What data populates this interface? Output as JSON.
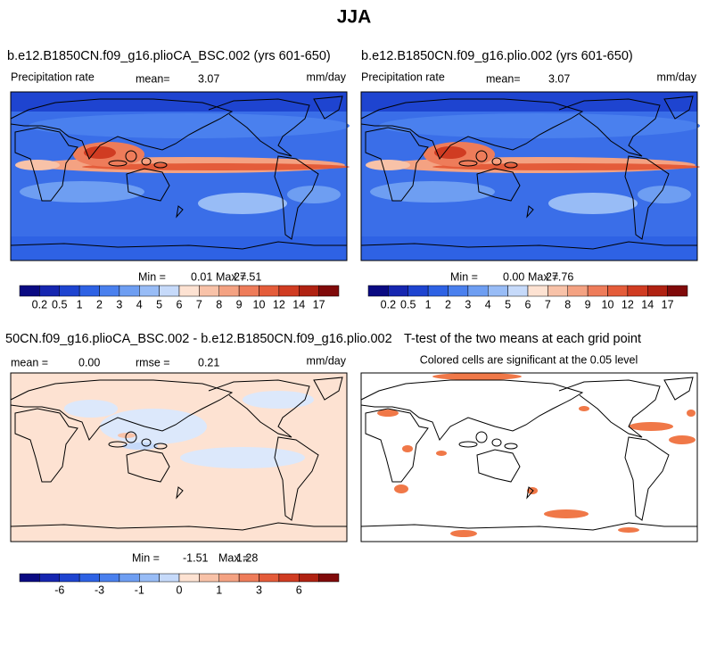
{
  "title": "JJA",
  "panels": [
    {
      "title": "b.e12.B1850CN.f09_g16.plioCA_BSC.002 (yrs 601-650)",
      "label": "Precipitation rate",
      "mean_label": "mean=",
      "mean": "3.07",
      "units": "mm/day",
      "min_label": "Min =",
      "min": "0.01",
      "max_label": "Max =",
      "max": "27.51"
    },
    {
      "title": "b.e12.B1850CN.f09_g16.plio.002 (yrs 601-650)",
      "label": "Precipitation rate",
      "mean_label": "mean=",
      "mean": "3.07",
      "units": "mm/day",
      "min_label": "Min =",
      "min": "0.00",
      "max_label": "Max =",
      "max": "27.76"
    },
    {
      "title": "50CN.f09_g16.plioCA_BSC.002 - b.e12.B1850CN.f09_g16.plio.002",
      "mean_label": "mean =",
      "mean": "0.00",
      "rmse_label": "rmse =",
      "rmse": "0.21",
      "units": "mm/day",
      "min_label": "Min =",
      "min": "-1.51",
      "max_label": "Max =",
      "max": "1.28"
    },
    {
      "title": "T-test of the two means at each grid point",
      "subtitle": "Colored cells are significant at the 0.05 level"
    }
  ],
  "colorbars": [
    {
      "colors": [
        "#0a0a82",
        "#1626b0",
        "#1e44d0",
        "#2e62e4",
        "#4a80ee",
        "#6e9ef2",
        "#98bcf6",
        "#c6dafa",
        "#fde2d2",
        "#f8c2a8",
        "#f4a282",
        "#ee7c5a",
        "#e45c3a",
        "#d03c22",
        "#b02212",
        "#800a0a"
      ],
      "labels": [
        "0.2",
        "0.5",
        "1",
        "2",
        "3",
        "4",
        "5",
        "6",
        "7",
        "8",
        "9",
        "10",
        "12",
        "14",
        "17"
      ]
    },
    {
      "colors": [
        "#0a0a82",
        "#1626b0",
        "#1e44d0",
        "#2e62e4",
        "#4a80ee",
        "#6e9ef2",
        "#98bcf6",
        "#c6dafa",
        "#fde2d2",
        "#f8c2a8",
        "#f4a282",
        "#ee7c5a",
        "#e45c3a",
        "#d03c22",
        "#b02212",
        "#800a0a"
      ],
      "labels": [
        null,
        "-6",
        null,
        "-3",
        null,
        "-1",
        null,
        "0",
        null,
        "1",
        null,
        "3",
        null,
        "6",
        null
      ]
    }
  ]
}
